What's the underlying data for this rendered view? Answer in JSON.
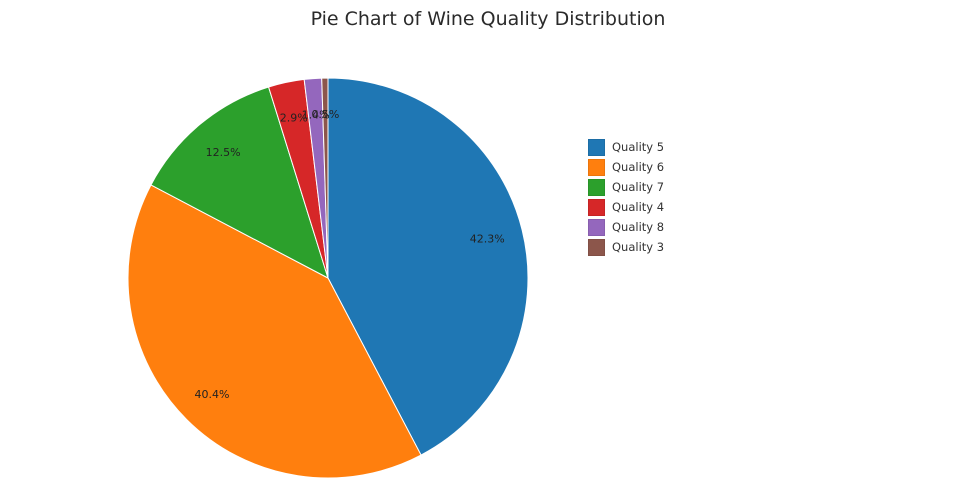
{
  "chart_data": {
    "type": "pie",
    "title": "Pie Chart of Wine Quality Distribution",
    "categories": [
      "Quality 5",
      "Quality 6",
      "Quality 7",
      "Quality 4",
      "Quality 8",
      "Quality 3"
    ],
    "values": [
      42.3,
      40.4,
      12.5,
      2.9,
      1.4,
      0.5
    ],
    "labels": [
      "42.3%",
      "40.4%",
      "12.5%",
      "2.9%",
      "1.4%",
      "0.5%"
    ],
    "colors": [
      "#1f77b4",
      "#ff7f0e",
      "#2ca02c",
      "#d62728",
      "#9467bd",
      "#8c564b"
    ],
    "legend_position": "right"
  }
}
